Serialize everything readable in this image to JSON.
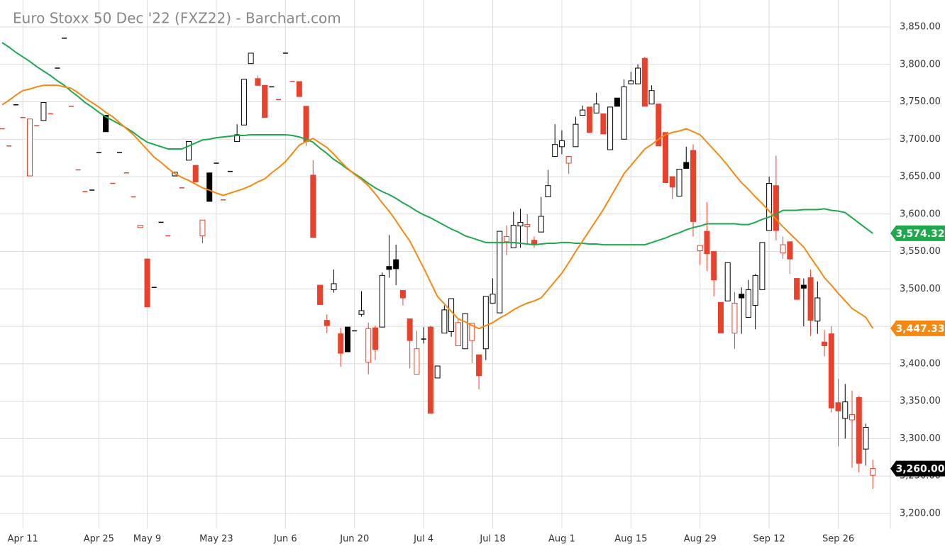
{
  "chart_data": {
    "type": "candlestick",
    "title": "Euro Stoxx 50 Dec '22 (FXZ22) - Barchart.com",
    "categories": [
      null,
      null,
      null,
      "Apr 11",
      null,
      null,
      null,
      null,
      null,
      null,
      null,
      null,
      null,
      null,
      "Apr 25",
      null,
      null,
      null,
      null,
      null,
      null,
      "May 9",
      null,
      null,
      null,
      null,
      null,
      null,
      null,
      null,
      null,
      "May 23",
      null,
      null,
      null,
      null,
      null,
      null,
      null,
      null,
      null,
      "Jun 6",
      null,
      null,
      null,
      null,
      null,
      null,
      null,
      null,
      null,
      "Jun 20",
      null,
      null,
      null,
      null,
      null,
      null,
      null,
      null,
      null,
      "Jul 4",
      null,
      null,
      null,
      null,
      null,
      null,
      null,
      null,
      null,
      "Jul 18",
      null,
      null,
      null,
      null,
      null,
      null,
      null,
      null,
      null,
      "Aug 1",
      null,
      null,
      null,
      null,
      null,
      null,
      null,
      null,
      null,
      "Aug 15",
      null,
      null,
      null,
      null,
      null,
      null,
      null,
      null,
      null,
      "Aug 29",
      null,
      null,
      null,
      null,
      null,
      null,
      null,
      null,
      null,
      "Sep 12",
      null,
      null,
      null,
      null,
      null,
      null,
      null,
      null,
      null,
      "Sep 26",
      null,
      null,
      null,
      null,
      null
    ],
    "open": [
      3714,
      3691,
      3746,
      3729,
      3651,
      3718,
      3725,
      3734,
      3795,
      3835,
      3744,
      3659,
      3630,
      3632,
      3682,
      3732,
      3641,
      3682,
      3655,
      3623,
      3582,
      3540,
      3502,
      3589,
      3571,
      3651,
      3635,
      3672,
      3665,
      3571,
      3655,
      3668,
      3619,
      3657,
      3697,
      3719,
      3801,
      3781,
      3772,
      3770,
      3753,
      3815,
      3777,
      3777,
      3744,
      3652,
      3505,
      3458,
      3499,
      3440,
      3449,
      3444,
      3466,
      3402,
      3448,
      3449,
      3530,
      3539,
      3498,
      3460,
      3386,
      3433,
      3449,
      3381,
      3441,
      3443,
      3424,
      3420,
      3431,
      3412,
      3420,
      3481,
      3468,
      3563,
      3555,
      3584,
      3583,
      3565,
      3576,
      3623,
      3677,
      3690,
      3668,
      3690,
      3732,
      3743,
      3735,
      3734,
      3686,
      3755,
      3700,
      3774,
      3774,
      3808,
      3747,
      3747,
      3709,
      3650,
      3624,
      3669,
      3685,
      3551,
      3577,
      3550,
      3482,
      3484,
      3441,
      3493,
      3462,
      3478,
      3499,
      3578,
      3638,
      3548,
      3563,
      3514,
      3505,
      3515,
      3457,
      3429,
      3440,
      3348,
      3327,
      3325,
      3355,
      3286,
      3251
    ],
    "high": [
      3714,
      3691,
      3746,
      3729,
      3727,
      3718,
      3749,
      3734,
      3795,
      3835,
      3744,
      3659,
      3630,
      3632,
      3682,
      3732,
      3641,
      3682,
      3655,
      3623,
      3585,
      3540,
      3502,
      3589,
      3571,
      3656,
      3635,
      3697,
      3665,
      3592,
      3655,
      3668,
      3619,
      3657,
      3720,
      3780,
      3815,
      3785,
      3772,
      3770,
      3753,
      3815,
      3777,
      3777,
      3744,
      3672,
      3505,
      3466,
      3526,
      3448,
      3449,
      3444,
      3497,
      3455,
      3451,
      3522,
      3572,
      3559,
      3498,
      3460,
      3444,
      3449,
      3451,
      3397,
      3478,
      3487,
      3460,
      3467,
      3454,
      3412,
      3490,
      3514,
      3577,
      3585,
      3603,
      3607,
      3600,
      3570,
      3623,
      3659,
      3720,
      3712,
      3677,
      3730,
      3745,
      3743,
      3762,
      3734,
      3743,
      3755,
      3780,
      3790,
      3800,
      3810,
      3772,
      3747,
      3709,
      3650,
      3660,
      3690,
      3693,
      3558,
      3616,
      3550,
      3482,
      3535,
      3496,
      3502,
      3512,
      3520,
      3562,
      3650,
      3678,
      3570,
      3563,
      3514,
      3514,
      3526,
      3510,
      3445,
      3450,
      3380,
      3373,
      3364,
      3357,
      3320,
      3272
    ],
    "low": [
      3714,
      3691,
      3746,
      3729,
      3651,
      3718,
      3725,
      3734,
      3795,
      3835,
      3744,
      3659,
      3630,
      3632,
      3682,
      3710,
      3641,
      3682,
      3655,
      3623,
      3582,
      3476,
      3502,
      3589,
      3571,
      3651,
      3635,
      3672,
      3643,
      3561,
      3617,
      3668,
      3619,
      3657,
      3697,
      3719,
      3801,
      3772,
      3729,
      3770,
      3753,
      3815,
      3777,
      3757,
      3691,
      3569,
      3479,
      3441,
      3495,
      3396,
      3416,
      3444,
      3463,
      3386,
      3405,
      3449,
      3515,
      3505,
      3478,
      3394,
      3386,
      3427,
      3334,
      3381,
      3441,
      3436,
      3424,
      3420,
      3401,
      3366,
      3405,
      3481,
      3468,
      3545,
      3555,
      3555,
      3560,
      3555,
      3576,
      3623,
      3677,
      3680,
      3654,
      3690,
      3732,
      3709,
      3735,
      3707,
      3686,
      3744,
      3700,
      3774,
      3774,
      3744,
      3747,
      3691,
      3642,
      3620,
      3624,
      3661,
      3570,
      3532,
      3524,
      3490,
      3441,
      3484,
      3420,
      3440,
      3462,
      3446,
      3499,
      3578,
      3565,
      3540,
      3520,
      3486,
      3450,
      3437,
      3440,
      3410,
      3335,
      3290,
      3300,
      3261,
      3255,
      3264,
      3233
    ],
    "close": [
      3714,
      3691,
      3746,
      3729,
      3727,
      3718,
      3749,
      3734,
      3795,
      3835,
      3744,
      3659,
      3630,
      3632,
      3682,
      3710,
      3641,
      3682,
      3655,
      3623,
      3585,
      3476,
      3502,
      3589,
      3571,
      3656,
      3635,
      3697,
      3643,
      3592,
      3617,
      3668,
      3619,
      3657,
      3706,
      3780,
      3815,
      3772,
      3729,
      3770,
      3753,
      3815,
      3777,
      3757,
      3697,
      3569,
      3479,
      3451,
      3507,
      3414,
      3416,
      3444,
      3471,
      3447,
      3419,
      3518,
      3526,
      3527,
      3488,
      3431,
      3420,
      3433,
      3334,
      3397,
      3472,
      3487,
      3455,
      3467,
      3454,
      3384,
      3490,
      3493,
      3577,
      3570,
      3585,
      3589,
      3586,
      3560,
      3597,
      3638,
      3693,
      3698,
      3677,
      3720,
      3739,
      3709,
      3747,
      3707,
      3743,
      3744,
      3770,
      3778,
      3795,
      3744,
      3765,
      3691,
      3642,
      3636,
      3660,
      3661,
      3590,
      3558,
      3547,
      3512,
      3441,
      3535,
      3481,
      3488,
      3499,
      3518,
      3562,
      3641,
      3578,
      3559,
      3540,
      3486,
      3501,
      3458,
      3488,
      3424,
      3341,
      3337,
      3349,
      3332,
      3267,
      3315,
      3260
    ],
    "last_label": "3,260.00",
    "up_color": "#000000",
    "down_color": "#e8412c",
    "series": [
      {
        "color": "#1fa84e",
        "last_label": "3,574.32",
        "values": [
          3829,
          3823,
          3816,
          3810,
          3804,
          3797,
          3791,
          3785,
          3778,
          3772,
          3764,
          3757,
          3749,
          3743,
          3736,
          3730,
          3725,
          3720,
          3715,
          3709,
          3702,
          3696,
          3693,
          3690,
          3687,
          3687,
          3687,
          3691,
          3695,
          3699,
          3700,
          3702,
          3703,
          3704,
          3705,
          3705,
          3706,
          3706,
          3706,
          3706,
          3706,
          3706,
          3705,
          3703,
          3700,
          3696,
          3688,
          3681,
          3673,
          3667,
          3660,
          3654,
          3648,
          3641,
          3635,
          3630,
          3626,
          3621,
          3615,
          3610,
          3604,
          3599,
          3595,
          3590,
          3585,
          3580,
          3576,
          3571,
          3568,
          3565,
          3562,
          3562,
          3562,
          3562,
          3562,
          3561,
          3560,
          3559,
          3560,
          3561,
          3561,
          3562,
          3562,
          3561,
          3561,
          3560,
          3560,
          3559,
          3559,
          3559,
          3559,
          3559,
          3559,
          3559,
          3562,
          3565,
          3568,
          3572,
          3575,
          3579,
          3582,
          3584,
          3587,
          3587,
          3587,
          3587,
          3587,
          3586,
          3586,
          3589,
          3593,
          3596,
          3600,
          3605,
          3605,
          3605,
          3606,
          3606,
          3606,
          3607,
          3605,
          3604,
          3602,
          3595,
          3588,
          3581,
          3574.32
        ]
      },
      {
        "color": "#f7880f",
        "last_label": "3,447.33",
        "values": [
          3746,
          3752,
          3759,
          3765,
          3767,
          3770,
          3772,
          3772,
          3772,
          3770,
          3768,
          3762,
          3755,
          3749,
          3743,
          3736,
          3730,
          3722,
          3714,
          3706,
          3696,
          3686,
          3676,
          3669,
          3661,
          3654,
          3649,
          3645,
          3640,
          3635,
          3632,
          3628,
          3625,
          3628,
          3631,
          3634,
          3638,
          3643,
          3647,
          3655,
          3662,
          3670,
          3681,
          3692,
          3697,
          3701,
          3695,
          3689,
          3680,
          3670,
          3661,
          3653,
          3646,
          3638,
          3627,
          3615,
          3604,
          3591,
          3577,
          3564,
          3546,
          3528,
          3509,
          3490,
          3480,
          3470,
          3460,
          3456,
          3451,
          3447,
          3451,
          3455,
          3461,
          3466,
          3472,
          3477,
          3481,
          3484,
          3488,
          3499,
          3510,
          3521,
          3535,
          3550,
          3564,
          3578,
          3592,
          3606,
          3622,
          3638,
          3654,
          3665,
          3676,
          3687,
          3693,
          3700,
          3706,
          3709,
          3711,
          3714,
          3710,
          3706,
          3696,
          3686,
          3676,
          3665,
          3653,
          3642,
          3633,
          3623,
          3614,
          3604,
          3593,
          3583,
          3574,
          3565,
          3556,
          3542,
          3529,
          3515,
          3505,
          3494,
          3484,
          3474,
          3468,
          3462,
          3447.33
        ]
      }
    ],
    "ylim": [
      3180,
      3886
    ],
    "yticks": [
      {
        "value": 3200,
        "label": "3,200.00"
      },
      {
        "value": 3250,
        "label": "3,250.00"
      },
      {
        "value": 3300,
        "label": "3,300.00"
      },
      {
        "value": 3350,
        "label": "3,350.00"
      },
      {
        "value": 3400,
        "label": "3,400.00"
      },
      {
        "value": 3450,
        "label": "3,450.00"
      },
      {
        "value": 3500,
        "label": "3,500.00"
      },
      {
        "value": 3550,
        "label": "3,550.00"
      },
      {
        "value": 3600,
        "label": "3,600.00"
      },
      {
        "value": 3650,
        "label": "3,650.00"
      },
      {
        "value": 3700,
        "label": "3,700.00"
      },
      {
        "value": 3750,
        "label": "3,750.00"
      },
      {
        "value": 3800,
        "label": "3,800.00"
      },
      {
        "value": 3850,
        "label": "3,850.00"
      }
    ],
    "grid": true
  }
}
